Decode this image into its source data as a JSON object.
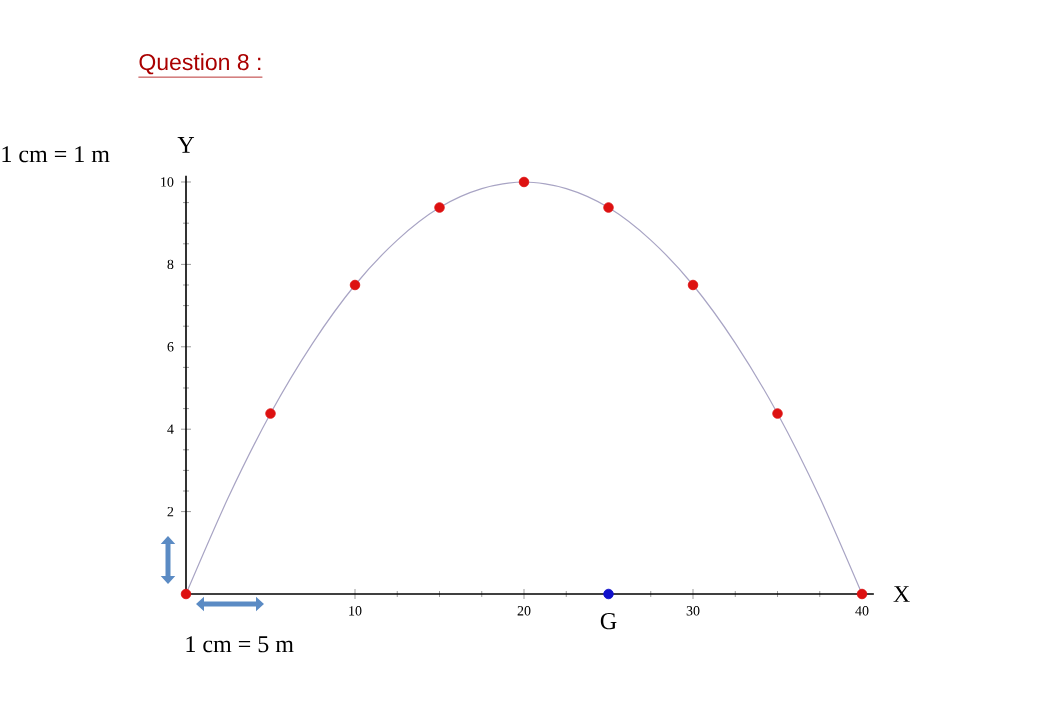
{
  "chart_data": {
    "type": "line",
    "title": "Question 8 :",
    "xlabel": "X",
    "ylabel": "Y",
    "annotations": [
      "1 cm = 1 m",
      "1 cm = 5 m",
      {
        "text": "G",
        "x": 25,
        "y": 0
      }
    ],
    "xlim": [
      0,
      40.7
    ],
    "ylim": [
      0,
      10.15
    ],
    "xticks": [
      10,
      20,
      30,
      40
    ],
    "yticks": [
      2,
      4,
      6,
      8,
      10
    ],
    "grid": false,
    "series": [
      {
        "color": "#a8a4c4",
        "marker": "none",
        "x": [
          0,
          2.5,
          5,
          7.5,
          10,
          12.5,
          15,
          17.5,
          20,
          22.5,
          25,
          27.5,
          30,
          32.5,
          35,
          37.5,
          40
        ],
        "values": [
          0,
          2.34,
          4.38,
          6.09,
          7.5,
          8.59,
          9.38,
          9.84,
          10,
          9.84,
          9.38,
          8.59,
          7.5,
          6.09,
          4.38,
          2.34,
          0
        ]
      },
      {
        "type": "scatter",
        "color": "#dd1111",
        "marker": "circle",
        "x": [
          0,
          5,
          10,
          15,
          20,
          25,
          30,
          35,
          40
        ],
        "values": [
          0,
          4.38,
          7.5,
          9.38,
          10,
          9.38,
          7.5,
          4.38,
          0
        ]
      },
      {
        "type": "scatter",
        "color": "#1111cc",
        "marker": "circle",
        "x": [
          25
        ],
        "values": [
          0
        ]
      }
    ]
  }
}
